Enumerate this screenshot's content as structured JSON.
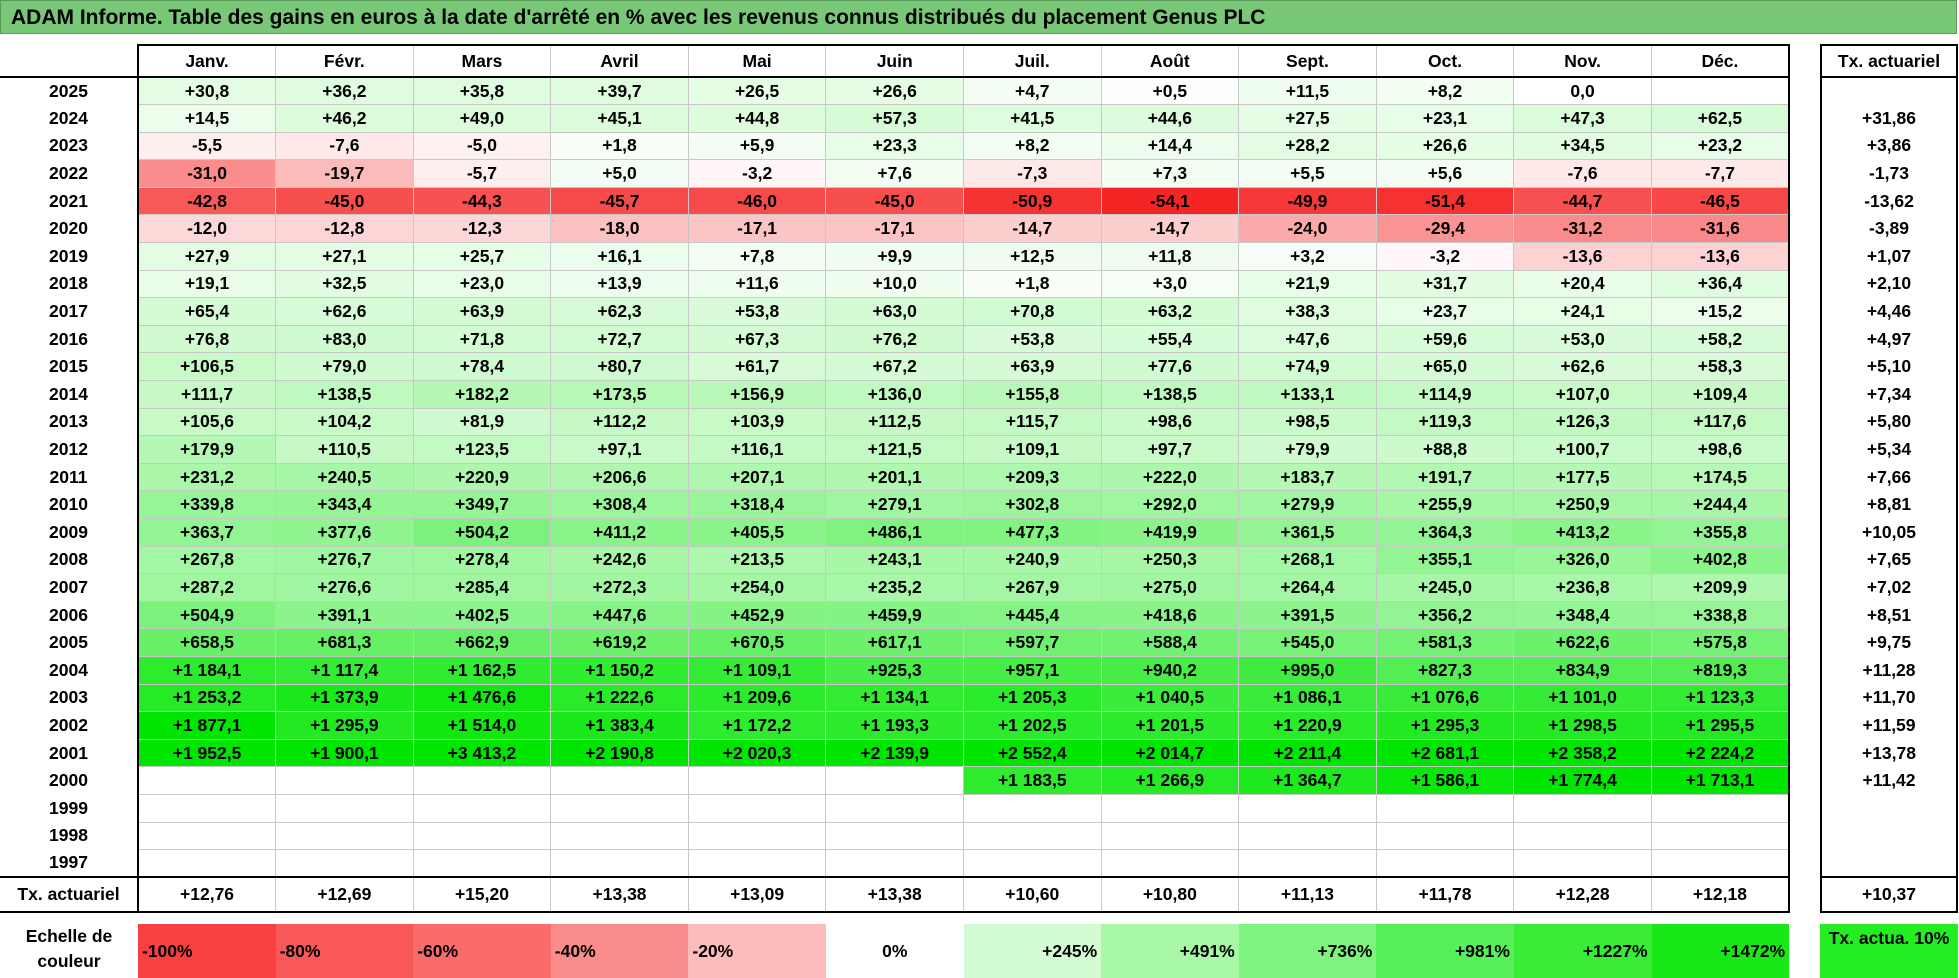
{
  "title": "ADAM Informe. Table des gains en euros à la date d'arrêté en % avec les revenus connus distribués du placement Genus PLC",
  "months": [
    "Janv.",
    "Févr.",
    "Mars",
    "Avril",
    "Mai",
    "Juin",
    "Juil.",
    "Août",
    "Sept.",
    "Oct.",
    "Nov.",
    "Déc."
  ],
  "actuarial_header": "Tx. actuariel",
  "rows": [
    {
      "year": "2025",
      "values": [
        "+30,8",
        "+36,2",
        "+35,8",
        "+39,7",
        "+26,5",
        "+26,6",
        "+4,7",
        "+0,5",
        "+11,5",
        "+8,2",
        "0,0",
        ""
      ],
      "rate": ""
    },
    {
      "year": "2024",
      "values": [
        "+14,5",
        "+46,2",
        "+49,0",
        "+45,1",
        "+44,8",
        "+57,3",
        "+41,5",
        "+44,6",
        "+27,5",
        "+23,1",
        "+47,3",
        "+62,5"
      ],
      "rate": "+31,86"
    },
    {
      "year": "2023",
      "values": [
        "-5,5",
        "-7,6",
        "-5,0",
        "+1,8",
        "+5,9",
        "+23,3",
        "+8,2",
        "+14,4",
        "+28,2",
        "+26,6",
        "+34,5",
        "+23,2"
      ],
      "rate": "+3,86"
    },
    {
      "year": "2022",
      "values": [
        "-31,0",
        "-19,7",
        "-5,7",
        "+5,0",
        "-3,2",
        "+7,6",
        "-7,3",
        "+7,3",
        "+5,5",
        "+5,6",
        "-7,6",
        "-7,7"
      ],
      "rate": "-1,73"
    },
    {
      "year": "2021",
      "values": [
        "-42,8",
        "-45,0",
        "-44,3",
        "-45,7",
        "-46,0",
        "-45,0",
        "-50,9",
        "-54,1",
        "-49,9",
        "-51,4",
        "-44,7",
        "-46,5"
      ],
      "rate": "-13,62"
    },
    {
      "year": "2020",
      "values": [
        "-12,0",
        "-12,8",
        "-12,3",
        "-18,0",
        "-17,1",
        "-17,1",
        "-14,7",
        "-14,7",
        "-24,0",
        "-29,4",
        "-31,2",
        "-31,6"
      ],
      "rate": "-3,89"
    },
    {
      "year": "2019",
      "values": [
        "+27,9",
        "+27,1",
        "+25,7",
        "+16,1",
        "+7,8",
        "+9,9",
        "+12,5",
        "+11,8",
        "+3,2",
        "-3,2",
        "-13,6",
        "-13,6"
      ],
      "rate": "+1,07"
    },
    {
      "year": "2018",
      "values": [
        "+19,1",
        "+32,5",
        "+23,0",
        "+13,9",
        "+11,6",
        "+10,0",
        "+1,8",
        "+3,0",
        "+21,9",
        "+31,7",
        "+20,4",
        "+36,4"
      ],
      "rate": "+2,10"
    },
    {
      "year": "2017",
      "values": [
        "+65,4",
        "+62,6",
        "+63,9",
        "+62,3",
        "+53,8",
        "+63,0",
        "+70,8",
        "+63,2",
        "+38,3",
        "+23,7",
        "+24,1",
        "+15,2"
      ],
      "rate": "+4,46"
    },
    {
      "year": "2016",
      "values": [
        "+76,8",
        "+83,0",
        "+71,8",
        "+72,7",
        "+67,3",
        "+76,2",
        "+53,8",
        "+55,4",
        "+47,6",
        "+59,6",
        "+53,0",
        "+58,2"
      ],
      "rate": "+4,97"
    },
    {
      "year": "2015",
      "values": [
        "+106,5",
        "+79,0",
        "+78,4",
        "+80,7",
        "+61,7",
        "+67,2",
        "+63,9",
        "+77,6",
        "+74,9",
        "+65,0",
        "+62,6",
        "+58,3"
      ],
      "rate": "+5,10"
    },
    {
      "year": "2014",
      "values": [
        "+111,7",
        "+138,5",
        "+182,2",
        "+173,5",
        "+156,9",
        "+136,0",
        "+155,8",
        "+138,5",
        "+133,1",
        "+114,9",
        "+107,0",
        "+109,4"
      ],
      "rate": "+7,34"
    },
    {
      "year": "2013",
      "values": [
        "+105,6",
        "+104,2",
        "+81,9",
        "+112,2",
        "+103,9",
        "+112,5",
        "+115,7",
        "+98,6",
        "+98,5",
        "+119,3",
        "+126,3",
        "+117,6"
      ],
      "rate": "+5,80"
    },
    {
      "year": "2012",
      "values": [
        "+179,9",
        "+110,5",
        "+123,5",
        "+97,1",
        "+116,1",
        "+121,5",
        "+109,1",
        "+97,7",
        "+79,9",
        "+88,8",
        "+100,7",
        "+98,6"
      ],
      "rate": "+5,34"
    },
    {
      "year": "2011",
      "values": [
        "+231,2",
        "+240,5",
        "+220,9",
        "+206,6",
        "+207,1",
        "+201,1",
        "+209,3",
        "+222,0",
        "+183,7",
        "+191,7",
        "+177,5",
        "+174,5"
      ],
      "rate": "+7,66"
    },
    {
      "year": "2010",
      "values": [
        "+339,8",
        "+343,4",
        "+349,7",
        "+308,4",
        "+318,4",
        "+279,1",
        "+302,8",
        "+292,0",
        "+279,9",
        "+255,9",
        "+250,9",
        "+244,4"
      ],
      "rate": "+8,81"
    },
    {
      "year": "2009",
      "values": [
        "+363,7",
        "+377,6",
        "+504,2",
        "+411,2",
        "+405,5",
        "+486,1",
        "+477,3",
        "+419,9",
        "+361,5",
        "+364,3",
        "+413,2",
        "+355,8"
      ],
      "rate": "+10,05"
    },
    {
      "year": "2008",
      "values": [
        "+267,8",
        "+276,7",
        "+278,4",
        "+242,6",
        "+213,5",
        "+243,1",
        "+240,9",
        "+250,3",
        "+268,1",
        "+355,1",
        "+326,0",
        "+402,8"
      ],
      "rate": "+7,65"
    },
    {
      "year": "2007",
      "values": [
        "+287,2",
        "+276,6",
        "+285,4",
        "+272,3",
        "+254,0",
        "+235,2",
        "+267,9",
        "+275,0",
        "+264,4",
        "+245,0",
        "+236,8",
        "+209,9"
      ],
      "rate": "+7,02"
    },
    {
      "year": "2006",
      "values": [
        "+504,9",
        "+391,1",
        "+402,5",
        "+447,6",
        "+452,9",
        "+459,9",
        "+445,4",
        "+418,6",
        "+391,5",
        "+356,2",
        "+348,4",
        "+338,8"
      ],
      "rate": "+8,51"
    },
    {
      "year": "2005",
      "values": [
        "+658,5",
        "+681,3",
        "+662,9",
        "+619,2",
        "+670,5",
        "+617,1",
        "+597,7",
        "+588,4",
        "+545,0",
        "+581,3",
        "+622,6",
        "+575,8"
      ],
      "rate": "+9,75"
    },
    {
      "year": "2004",
      "values": [
        "+1 184,1",
        "+1 117,4",
        "+1 162,5",
        "+1 150,2",
        "+1 109,1",
        "+925,3",
        "+957,1",
        "+940,2",
        "+995,0",
        "+827,3",
        "+834,9",
        "+819,3"
      ],
      "rate": "+11,28"
    },
    {
      "year": "2003",
      "values": [
        "+1 253,2",
        "+1 373,9",
        "+1 476,6",
        "+1 222,6",
        "+1 209,6",
        "+1 134,1",
        "+1 205,3",
        "+1 040,5",
        "+1 086,1",
        "+1 076,6",
        "+1 101,0",
        "+1 123,3"
      ],
      "rate": "+11,70"
    },
    {
      "year": "2002",
      "values": [
        "+1 877,1",
        "+1 295,9",
        "+1 514,0",
        "+1 383,4",
        "+1 172,2",
        "+1 193,3",
        "+1 202,5",
        "+1 201,5",
        "+1 220,9",
        "+1 295,3",
        "+1 298,5",
        "+1 295,5"
      ],
      "rate": "+11,59"
    },
    {
      "year": "2001",
      "values": [
        "+1 952,5",
        "+1 900,1",
        "+3 413,2",
        "+2 190,8",
        "+2 020,3",
        "+2 139,9",
        "+2 552,4",
        "+2 014,7",
        "+2 211,4",
        "+2 681,1",
        "+2 358,2",
        "+2 224,2"
      ],
      "rate": "+13,78"
    },
    {
      "year": "2000",
      "values": [
        "",
        "",
        "",
        "",
        "",
        "",
        "+1 183,5",
        "+1 266,9",
        "+1 364,7",
        "+1 586,1",
        "+1 774,4",
        "+1 713,1"
      ],
      "rate": "+11,42"
    },
    {
      "year": "1999",
      "values": [
        "",
        "",
        "",
        "",
        "",
        "",
        "",
        "",
        "",
        "",
        "",
        ""
      ],
      "rate": ""
    },
    {
      "year": "1998",
      "values": [
        "",
        "",
        "",
        "",
        "",
        "",
        "",
        "",
        "",
        "",
        "",
        ""
      ],
      "rate": ""
    },
    {
      "year": "1997",
      "values": [
        "",
        "",
        "",
        "",
        "",
        "",
        "",
        "",
        "",
        "",
        "",
        ""
      ],
      "rate": ""
    }
  ],
  "footer": {
    "label": "Tx. actuariel",
    "values": [
      "+12,76",
      "+12,69",
      "+15,20",
      "+13,38",
      "+13,09",
      "+13,38",
      "+10,60",
      "+10,80",
      "+11,13",
      "+11,78",
      "+12,28",
      "+12,18"
    ],
    "overall": "+10,37"
  },
  "scale": {
    "label": "Echelle de couleur",
    "items": [
      {
        "text": "-100%",
        "color": "#f84040"
      },
      {
        "text": "-80%",
        "color": "#f95858"
      },
      {
        "text": "-60%",
        "color": "#fa6c6c"
      },
      {
        "text": "-40%",
        "color": "#fb8c8c"
      },
      {
        "text": "-20%",
        "color": "#fdbcbc"
      },
      {
        "text": "0%",
        "color": "#ffffff"
      },
      {
        "text": "+245%",
        "color": "#d4fcd4"
      },
      {
        "text": "+491%",
        "color": "#a8f8a8"
      },
      {
        "text": "+736%",
        "color": "#7ef47e"
      },
      {
        "text": "+981%",
        "color": "#58f058"
      },
      {
        "text": "+1227%",
        "color": "#38ec38"
      },
      {
        "text": "+1472%",
        "color": "#18e818"
      }
    ],
    "tx10_label": "Tx. actua. 10%"
  },
  "colors": {
    "title_bar": "#78c878",
    "negative_max": "#f84040",
    "positive_max": "#00e600"
  }
}
